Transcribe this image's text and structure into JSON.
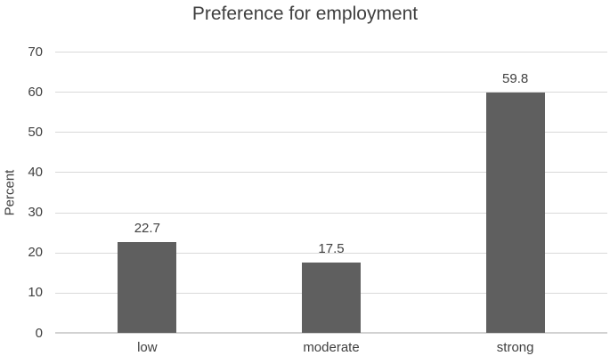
{
  "chart_data": {
    "type": "bar",
    "title": "Preference for employment",
    "categories": [
      "low",
      "moderate",
      "strong"
    ],
    "values": [
      22.7,
      17.5,
      59.8
    ],
    "value_labels": [
      "22.7",
      "17.5",
      "59.8"
    ],
    "xlabel": "",
    "ylabel": "Percent",
    "ylim": [
      0,
      70
    ],
    "yticks": [
      0,
      10,
      20,
      30,
      40,
      50,
      60,
      70
    ],
    "grid": "horizontal",
    "legend": "none",
    "colors": {
      "bar": "#5f5f5f",
      "gridline": "#d9d9d9",
      "axis_line": "#d2d2d2",
      "text": "#404040"
    }
  }
}
